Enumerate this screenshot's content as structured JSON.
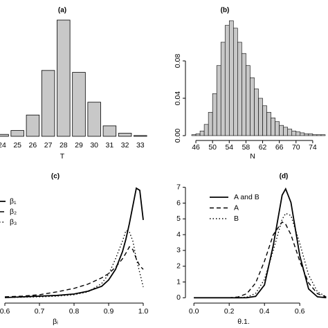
{
  "chart_data": [
    {
      "type": "bar",
      "title": "(a)",
      "x_label": "T",
      "categories": [
        "24",
        "25",
        "26",
        "27",
        "28",
        "29",
        "30",
        "31",
        "32",
        "33"
      ],
      "values": [
        0.005,
        0.015,
        0.055,
        0.17,
        0.3,
        0.165,
        0.088,
        0.027,
        0.008,
        0.002
      ],
      "color": "#c8c8c8"
    },
    {
      "type": "histogram",
      "title": "(b)",
      "x_label": "N",
      "bins": [
        45,
        46,
        47,
        48,
        49,
        50,
        51,
        52,
        53,
        54,
        55,
        56,
        57,
        58,
        59,
        60,
        61,
        62,
        63,
        64,
        65,
        66,
        67,
        68,
        69,
        70,
        71,
        72,
        73,
        74,
        75,
        76,
        77
      ],
      "counts": [
        0.001,
        0.002,
        0.005,
        0.012,
        0.025,
        0.045,
        0.075,
        0.1,
        0.118,
        0.123,
        0.115,
        0.1,
        0.088,
        0.075,
        0.062,
        0.05,
        0.04,
        0.032,
        0.025,
        0.019,
        0.015,
        0.011,
        0.009,
        0.007,
        0.005,
        0.004,
        0.003,
        0.002,
        0.002,
        0.001,
        0.001,
        0.001
      ],
      "color": "#c8c8c8",
      "xlim": [
        44.5,
        77
      ],
      "xticks": [
        46,
        50,
        54,
        58,
        62,
        66,
        70,
        74
      ],
      "ylim": [
        -0.005,
        0.13
      ],
      "yticks": [
        {
          "value": 0,
          "label": "0.00"
        },
        {
          "value": 0.04,
          "label": "0.04"
        },
        {
          "value": 0.08,
          "label": "0.08"
        }
      ]
    },
    {
      "type": "line",
      "title": "(c)",
      "x_label": "βᵢ",
      "x": [
        0.6,
        0.65,
        0.7,
        0.75,
        0.8,
        0.84,
        0.88,
        0.9,
        0.92,
        0.94,
        0.95,
        0.96,
        0.97,
        0.98,
        0.99,
        1.0
      ],
      "series": [
        {
          "name": "β₁",
          "color": "#000000",
          "dash": "solid",
          "values": [
            0,
            0.1,
            0.2,
            0.3,
            0.5,
            0.9,
            1.6,
            2.5,
            4.0,
            6.5,
            8.3,
            10.5,
            13,
            15.5,
            15.2,
            11
          ]
        },
        {
          "name": "β₂",
          "color": "#000000",
          "dash": "dashed",
          "values": [
            0.1,
            0.2,
            0.4,
            0.8,
            1.3,
            1.9,
            2.8,
            3.4,
            4.3,
            5.5,
            6.3,
            7.2,
            6.8,
            5.5,
            4.5,
            4.0
          ]
        },
        {
          "name": "β₃",
          "color": "#000000",
          "dash": "dotted",
          "values": [
            0,
            0.05,
            0.1,
            0.2,
            0.4,
            0.8,
            2.0,
            3.3,
            5.5,
            8.0,
            9.5,
            9.3,
            8.0,
            5.5,
            3.5,
            1.5
          ]
        }
      ],
      "xlim": [
        0.58,
        1.02
      ],
      "xticks": [
        0.6,
        0.7,
        0.8,
        0.9,
        {
          "value": 1.0,
          "label": "1.0"
        }
      ]
    },
    {
      "type": "line",
      "title": "(d)",
      "x_label": "θ.1.",
      "x": [
        0.0,
        0.1,
        0.2,
        0.25,
        0.3,
        0.35,
        0.4,
        0.45,
        0.5,
        0.52,
        0.55,
        0.6,
        0.65,
        0.7,
        0.75
      ],
      "series": [
        {
          "name": "A and B",
          "color": "#000000",
          "dash": "solid",
          "values": [
            0,
            0,
            0,
            0,
            0.005,
            0.09,
            0.81,
            3.33,
            6.5,
            6.9,
            6.04,
            2.67,
            0.56,
            0.06,
            0.003
          ]
        },
        {
          "name": "A",
          "color": "#000000",
          "dash": "dashed",
          "values": [
            0,
            0,
            0,
            0.05,
            0.26,
            0.94,
            2.32,
            4.0,
            4.8,
            4.66,
            4.0,
            2.32,
            0.94,
            0.26,
            0.05
          ]
        },
        {
          "name": "B",
          "color": "#000000",
          "dash": "dotted",
          "values": [
            0,
            0,
            0,
            0.004,
            0.04,
            0.28,
            1.16,
            3.01,
            4.97,
            5.35,
            5.21,
            3.45,
            1.45,
            0.38,
            0.065
          ]
        }
      ],
      "xlim": [
        -0.04,
        0.76
      ],
      "xticks": [
        {
          "value": 0,
          "label": "0.0"
        },
        0.2,
        0.4,
        0.6
      ],
      "ylim": [
        -0.25,
        7.25
      ],
      "yticks": [
        0,
        1,
        2,
        3,
        4,
        5,
        6,
        7
      ]
    }
  ]
}
